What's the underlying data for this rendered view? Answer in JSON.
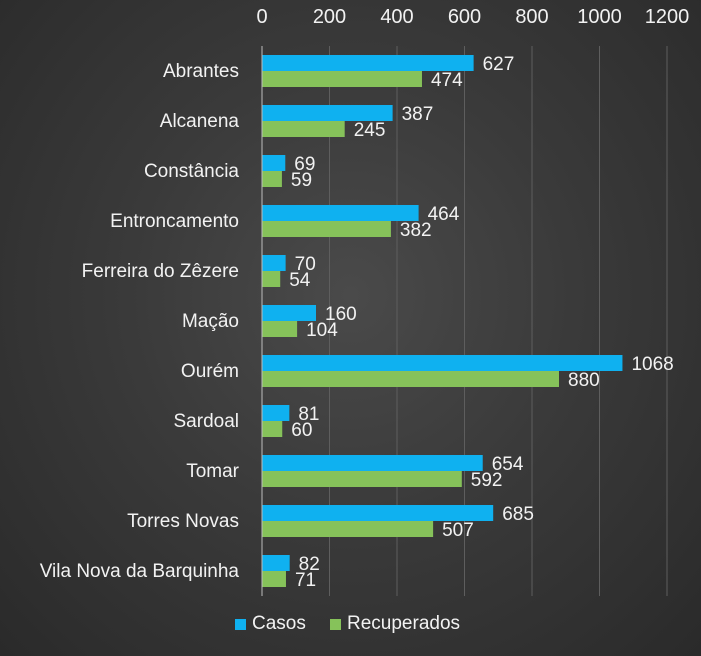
{
  "chart_data": {
    "type": "bar",
    "orientation": "horizontal",
    "categories": [
      "Abrantes",
      "Alcanena",
      "Constância",
      "Entroncamento",
      "Ferreira do Zêzere",
      "Mação",
      "Ourém",
      "Sardoal",
      "Tomar",
      "Torres Novas",
      "Vila Nova da Barquinha"
    ],
    "series": [
      {
        "name": "Casos",
        "color": "#0fb1f0",
        "values": [
          627,
          387,
          69,
          464,
          70,
          160,
          1068,
          81,
          654,
          685,
          82
        ]
      },
      {
        "name": "Recuperados",
        "color": "#86c25a",
        "values": [
          474,
          245,
          59,
          382,
          54,
          104,
          880,
          60,
          592,
          507,
          71
        ]
      }
    ],
    "title": "",
    "xlabel": "",
    "ylabel": "",
    "xlim": [
      0,
      1200
    ],
    "xticks": [
      0,
      200,
      400,
      600,
      800,
      1000,
      1200
    ],
    "x_axis_position": "top",
    "grid": true,
    "data_labels": true,
    "legend_position": "bottom"
  }
}
